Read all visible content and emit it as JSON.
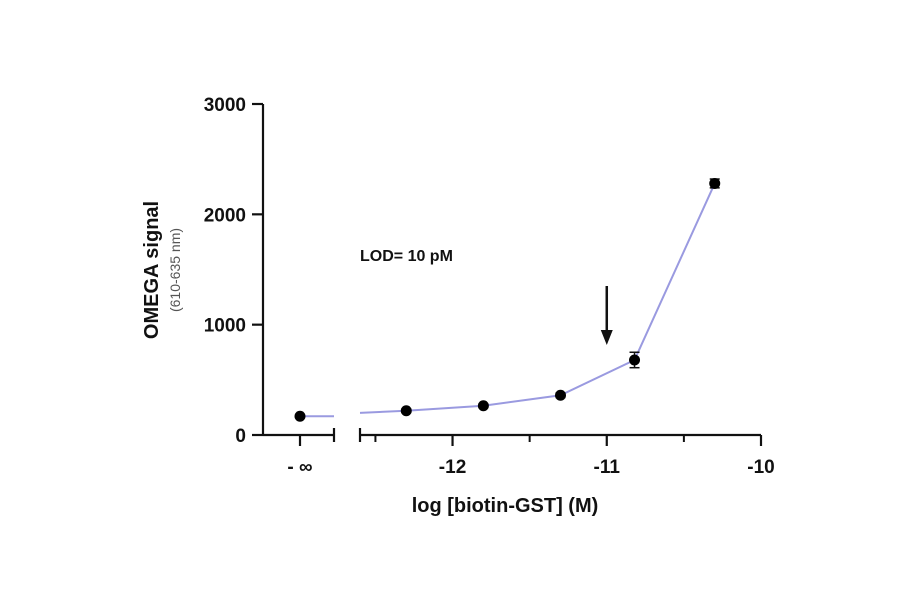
{
  "chart_data": {
    "type": "line",
    "xlabel": "log [biotin-GST] (M)",
    "ylabel": "OMEGA signal",
    "ylabel_sub": "(610-635 nm)",
    "xlim": [
      -12.6,
      -10
    ],
    "ylim": [
      0,
      3000
    ],
    "x_ticks": [
      -12,
      -11,
      -10
    ],
    "x_tick_labels": [
      "-12",
      "-11",
      "-10"
    ],
    "x_minor_ticks": [
      -12.5,
      -11.5,
      -10.5
    ],
    "y_ticks": [
      0,
      1000,
      2000,
      3000
    ],
    "y_tick_labels": [
      "0",
      "1000",
      "2000",
      "3000"
    ],
    "broken_axis_label": "- ∞",
    "baseline": {
      "label": "- ∞",
      "y": 170
    },
    "series": [
      {
        "x": [
          -12.3,
          -11.8,
          -11.3,
          -10.82,
          -10.3
        ],
        "y": [
          220,
          265,
          360,
          680,
          2280
        ],
        "error": [
          15,
          15,
          20,
          70,
          40
        ]
      }
    ],
    "line_color": "#9a9ae0",
    "marker_color": "#000000",
    "annotation": {
      "text": "LOD= 10 pM",
      "arrow_x": -11
    }
  }
}
